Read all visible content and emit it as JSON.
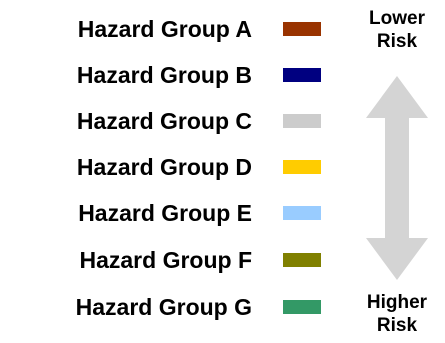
{
  "legend": {
    "groups": [
      {
        "label": "Hazard Group A",
        "color": "#993300"
      },
      {
        "label": "Hazard Group B",
        "color": "#000080"
      },
      {
        "label": "Hazard Group C",
        "color": "#cccccc"
      },
      {
        "label": "Hazard Group D",
        "color": "#ffcc00"
      },
      {
        "label": "Hazard Group E",
        "color": "#99ccff"
      },
      {
        "label": "Hazard Group F",
        "color": "#808000"
      },
      {
        "label": "Hazard Group G",
        "color": "#339966"
      }
    ]
  },
  "risk_scale": {
    "top_line1": "Lower",
    "top_line2": "Risk",
    "bottom_line1": "Higher",
    "bottom_line2": "Risk",
    "arrow_color": "#d4d4d4"
  }
}
